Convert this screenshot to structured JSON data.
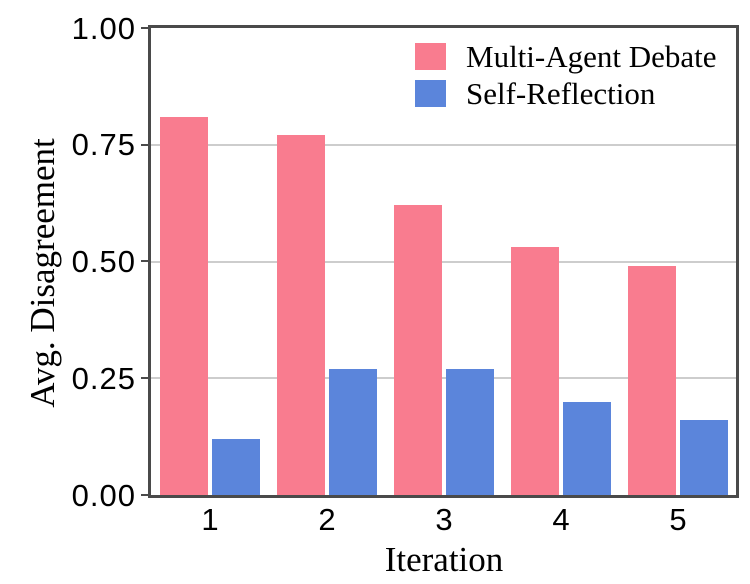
{
  "chart_data": {
    "type": "bar",
    "title": "",
    "xlabel": "Iteration",
    "ylabel": "Avg. Disagreement",
    "categories": [
      "1",
      "2",
      "3",
      "4",
      "5"
    ],
    "series": [
      {
        "name": "Multi-Agent Debate",
        "color": "#F97C8F",
        "values": [
          0.81,
          0.77,
          0.62,
          0.53,
          0.49
        ]
      },
      {
        "name": "Self-Reflection",
        "color": "#5B85DB",
        "values": [
          0.12,
          0.27,
          0.27,
          0.2,
          0.16
        ]
      }
    ],
    "ylim": [
      0,
      1.0
    ],
    "yticks": [
      "0.00",
      "0.25",
      "0.50",
      "0.75",
      "1.00"
    ],
    "ytick_values": [
      0,
      0.25,
      0.5,
      0.75,
      1.0
    ],
    "grid": "horizontal",
    "legend_position": "top-right-inside",
    "legend_frame": false,
    "colors": {
      "axis_spine": "#4A4A4A",
      "gridline": "#CDCDCD",
      "text": "#000000",
      "background": "#FFFFFF"
    }
  }
}
